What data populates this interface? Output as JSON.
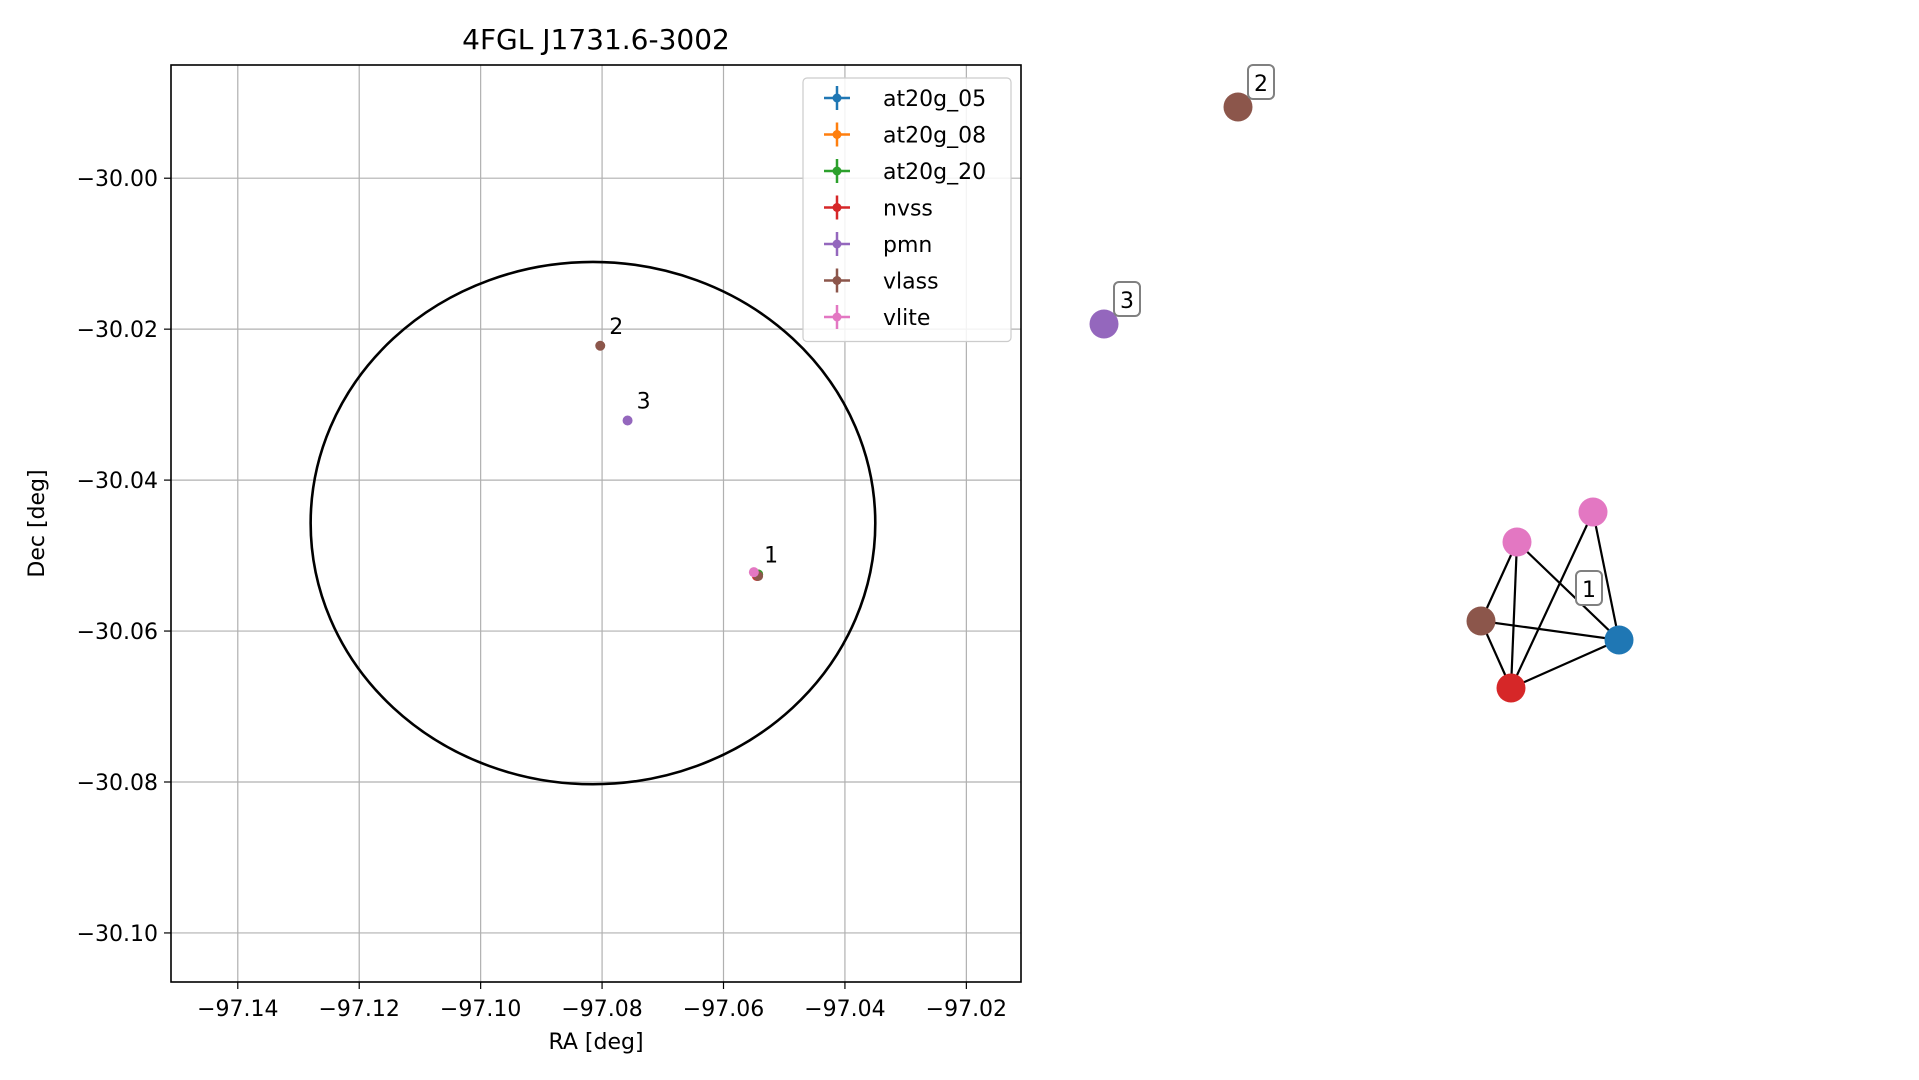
{
  "chart_data": [
    {
      "type": "scatter",
      "title": "4FGL J1731.6-3002",
      "xlabel": "RA [deg]",
      "ylabel": "Dec [deg]",
      "xlim": [
        -97.151,
        -97.011
      ],
      "ylim": [
        -30.1065,
        -29.985
      ],
      "xticks": [
        -97.14,
        -97.12,
        -97.1,
        -97.08,
        -97.06,
        -97.04,
        -97.02
      ],
      "xtick_labels": [
        "−97.14",
        "−97.12",
        "−97.10",
        "−97.08",
        "−97.06",
        "−97.04",
        "−97.02"
      ],
      "yticks": [
        -30.0,
        -30.02,
        -30.04,
        -30.06,
        -30.08,
        -30.1
      ],
      "ytick_labels": [
        "−30.00",
        "−30.02",
        "−30.04",
        "−30.06",
        "−30.08",
        "−30.10"
      ],
      "grid": true,
      "legend_position": "top-right",
      "ellipse": {
        "center_ra": -97.0815,
        "center_dec": -30.0457,
        "semi_axis_ra": 0.0465,
        "semi_axis_dec": 0.0346,
        "color": "#000000"
      },
      "series": [
        {
          "name": "at20g_05",
          "color": "#1f77b4",
          "points": [
            {
              "ra": -97.0543,
              "dec": -30.0525
            }
          ]
        },
        {
          "name": "at20g_08",
          "color": "#ff7f0e",
          "points": [
            {
              "ra": -97.0543,
              "dec": -30.0525
            }
          ]
        },
        {
          "name": "at20g_20",
          "color": "#2ca02c",
          "points": [
            {
              "ra": -97.0543,
              "dec": -30.0525
            }
          ]
        },
        {
          "name": "nvss",
          "color": "#d62728",
          "points": [
            {
              "ra": -97.0545,
              "dec": -30.0527
            }
          ]
        },
        {
          "name": "pmn",
          "color": "#9467bd",
          "points": [
            {
              "ra": -97.0758,
              "dec": -30.0321
            }
          ]
        },
        {
          "name": "vlass",
          "color": "#8c564b",
          "points": [
            {
              "ra": -97.0803,
              "dec": -30.0222
            },
            {
              "ra": -97.0543,
              "dec": -30.0527
            }
          ]
        },
        {
          "name": "vlite",
          "color": "#e377c2",
          "points": [
            {
              "ra": -97.055,
              "dec": -30.0522
            }
          ]
        }
      ],
      "annotations": [
        {
          "text": "1",
          "ra": -97.0548,
          "dec": -30.0525
        },
        {
          "text": "2",
          "ra": -97.0803,
          "dec": -30.0222
        },
        {
          "text": "3",
          "ra": -97.0758,
          "dec": -30.0321
        }
      ]
    },
    {
      "type": "network",
      "nodes": [
        {
          "id": "v2",
          "color": "#8c564b"
        },
        {
          "id": "p3",
          "color": "#9467bd"
        },
        {
          "id": "vl1",
          "color": "#e377c2"
        },
        {
          "id": "vl2",
          "color": "#e377c2"
        },
        {
          "id": "br",
          "color": "#8c564b"
        },
        {
          "id": "bl",
          "color": "#1f77b4"
        },
        {
          "id": "rd",
          "color": "#d62728"
        }
      ],
      "edges": [
        [
          "vl2",
          "br"
        ],
        [
          "vl2",
          "bl"
        ],
        [
          "vl2",
          "rd"
        ],
        [
          "vl1",
          "bl"
        ],
        [
          "vl1",
          "rd"
        ],
        [
          "br",
          "bl"
        ],
        [
          "br",
          "rd"
        ],
        [
          "bl",
          "rd"
        ]
      ],
      "labels": [
        {
          "text": "1"
        },
        {
          "text": "2"
        },
        {
          "text": "3"
        }
      ]
    }
  ]
}
